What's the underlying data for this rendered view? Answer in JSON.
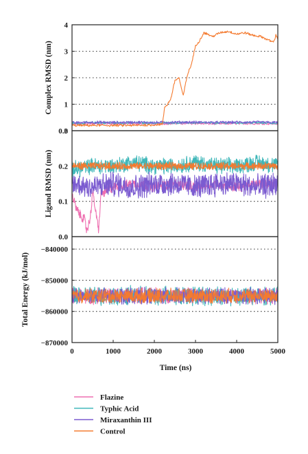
{
  "figure": {
    "xlabel": "Time (ns)",
    "colors": {
      "Flazine": "#ee6fb0",
      "Typhic Acid": "#3fb7b9",
      "Miraxanthin III": "#7b5bd0",
      "Control": "#f47a2f"
    },
    "legend": [
      "Flazine",
      "Typhic Acid",
      "Miraxanthin III",
      "Control"
    ]
  },
  "chart_data": [
    {
      "type": "line",
      "panel": "top",
      "title": "",
      "xlabel": "Time (ns)",
      "ylabel": "Complex RMSD (nm)",
      "xlim": [
        0,
        5000
      ],
      "ylim": [
        0,
        4
      ],
      "yticks": [
        "0",
        "1",
        "2",
        "3",
        "4"
      ],
      "ytick_values": [
        0,
        1,
        2,
        3,
        4
      ],
      "grid": "horizontal dotted",
      "series": [
        {
          "name": "Flazine",
          "x": [
            0,
            500,
            1000,
            1500,
            2000,
            2500,
            3000,
            3500,
            4000,
            4500,
            5000
          ],
          "values": [
            0.25,
            0.27,
            0.26,
            0.27,
            0.26,
            0.27,
            0.27,
            0.26,
            0.27,
            0.27,
            0.26
          ]
        },
        {
          "name": "Typhic Acid",
          "x": [
            0,
            500,
            1000,
            1500,
            2000,
            2500,
            3000,
            3500,
            4000,
            4500,
            5000
          ],
          "values": [
            0.28,
            0.3,
            0.29,
            0.3,
            0.29,
            0.3,
            0.3,
            0.29,
            0.3,
            0.3,
            0.29
          ]
        },
        {
          "name": "Miraxanthin III",
          "x": [
            0,
            500,
            1000,
            1500,
            2000,
            2500,
            3000,
            3500,
            4000,
            4500,
            5000
          ],
          "values": [
            0.3,
            0.32,
            0.31,
            0.32,
            0.31,
            0.32,
            0.32,
            0.31,
            0.32,
            0.32,
            0.31
          ]
        },
        {
          "name": "Control",
          "x": [
            0,
            500,
            1000,
            1500,
            2000,
            2200,
            2250,
            2300,
            2400,
            2500,
            2600,
            2700,
            2800,
            2900,
            3000,
            3100,
            3200,
            3300,
            3400,
            3600,
            3800,
            4000,
            4200,
            4400,
            4600,
            4800,
            4900,
            4950,
            5000
          ],
          "values": [
            0.2,
            0.2,
            0.2,
            0.2,
            0.22,
            0.25,
            0.9,
            0.95,
            1.2,
            1.9,
            2.0,
            1.3,
            2.1,
            2.5,
            3.2,
            3.4,
            3.7,
            3.65,
            3.55,
            3.7,
            3.75,
            3.65,
            3.7,
            3.6,
            3.55,
            3.4,
            3.35,
            3.6,
            3.5
          ]
        }
      ]
    },
    {
      "type": "line",
      "panel": "middle",
      "title": "",
      "xlabel": "Time (ns)",
      "ylabel": "Ligand RMSD (nm)",
      "xlim": [
        0,
        5000
      ],
      "ylim": [
        0,
        0.3
      ],
      "yticks": [
        "0.0",
        "0.1",
        "0.2",
        "0.3"
      ],
      "ytick_values": [
        0,
        0.1,
        0.2,
        0.3
      ],
      "grid": "horizontal dotted",
      "series": [
        {
          "name": "Flazine",
          "x": [
            0,
            100,
            200,
            300,
            350,
            400,
            450,
            500,
            600,
            650,
            700,
            1000,
            1500,
            2000,
            2500,
            3000,
            3500,
            4000,
            4500,
            5000
          ],
          "values": [
            0.12,
            0.08,
            0.06,
            0.05,
            0.02,
            0.03,
            0.06,
            0.13,
            0.05,
            0.02,
            0.12,
            0.14,
            0.15,
            0.14,
            0.15,
            0.14,
            0.15,
            0.14,
            0.15,
            0.15
          ]
        },
        {
          "name": "Typhic Acid",
          "x": [
            0,
            500,
            1000,
            1500,
            2000,
            2500,
            3000,
            3500,
            4000,
            4500,
            5000
          ],
          "values": [
            0.19,
            0.2,
            0.2,
            0.21,
            0.2,
            0.2,
            0.21,
            0.2,
            0.2,
            0.21,
            0.2
          ]
        },
        {
          "name": "Miraxanthin III",
          "x": [
            0,
            500,
            1000,
            1500,
            2000,
            2500,
            3000,
            3500,
            4000,
            4500,
            5000
          ],
          "values": [
            0.15,
            0.14,
            0.15,
            0.14,
            0.15,
            0.15,
            0.14,
            0.15,
            0.15,
            0.14,
            0.15
          ]
        },
        {
          "name": "Control",
          "x": [
            0,
            500,
            1000,
            1500,
            2000,
            2500,
            3000,
            3500,
            4000,
            4500,
            5000
          ],
          "values": [
            0.2,
            0.2,
            0.2,
            0.2,
            0.2,
            0.2,
            0.2,
            0.2,
            0.2,
            0.2,
            0.2
          ]
        }
      ]
    },
    {
      "type": "line",
      "panel": "bottom",
      "title": "",
      "xlabel": "Time (ns)",
      "ylabel": "Total Energy (kJ/mol)",
      "xlim": [
        0,
        5000
      ],
      "ylim": [
        -870000,
        -836000
      ],
      "xticks": [
        "0",
        "1000",
        "2000",
        "3000",
        "4000",
        "5000"
      ],
      "xtick_values": [
        0,
        1000,
        2000,
        3000,
        4000,
        5000
      ],
      "yticks": [
        "−840000",
        "−850000",
        "−860000",
        "−870000"
      ],
      "ytick_values": [
        -840000,
        -850000,
        -860000,
        -870000
      ],
      "grid": "horizontal dotted",
      "series": [
        {
          "name": "Flazine",
          "x": [
            0,
            1000,
            2000,
            3000,
            4000,
            5000
          ],
          "values": [
            -855000,
            -855000,
            -855000,
            -855000,
            -855000,
            -855000
          ]
        },
        {
          "name": "Typhic Acid",
          "x": [
            0,
            1000,
            2000,
            3000,
            4000,
            5000
          ],
          "values": [
            -855000,
            -855000,
            -855000,
            -855000,
            -855000,
            -855000
          ]
        },
        {
          "name": "Miraxanthin III",
          "x": [
            0,
            1000,
            2000,
            3000,
            4000,
            5000
          ],
          "values": [
            -855000,
            -855000,
            -855000,
            -855000,
            -855000,
            -855000
          ]
        },
        {
          "name": "Control",
          "x": [
            0,
            1000,
            2000,
            3000,
            4000,
            5000
          ],
          "values": [
            -855000,
            -855000,
            -855000,
            -855000,
            -855000,
            -855000
          ]
        }
      ]
    }
  ]
}
